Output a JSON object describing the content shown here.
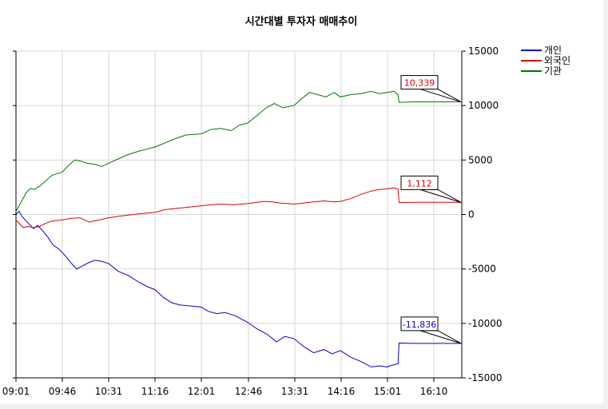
{
  "chart_data": {
    "type": "line",
    "title": "시간대별 투자자 매매추이",
    "xlabel": "",
    "ylabel": "",
    "x_ticks": [
      "09:01",
      "09:46",
      "10:31",
      "11:16",
      "12:01",
      "12:46",
      "13:31",
      "14:16",
      "15:01",
      "16:10"
    ],
    "x_range": [
      "09:01",
      "16:10"
    ],
    "ylim": [
      -15000,
      15000
    ],
    "y_ticks": [
      15000,
      10000,
      5000,
      0,
      -5000,
      -10000,
      -15000
    ],
    "grid": true,
    "legend_position": "right",
    "series": [
      {
        "name": "개인",
        "color": "#0000cc",
        "points": [
          [
            "09:01",
            0
          ],
          [
            "09:04",
            300
          ],
          [
            "09:07",
            -200
          ],
          [
            "09:10",
            -500
          ],
          [
            "09:14",
            -900
          ],
          [
            "09:18",
            -1300
          ],
          [
            "09:22",
            -1000
          ],
          [
            "09:27",
            -1500
          ],
          [
            "09:32",
            -2100
          ],
          [
            "09:37",
            -2800
          ],
          [
            "09:43",
            -3200
          ],
          [
            "09:49",
            -3800
          ],
          [
            "09:55",
            -4500
          ],
          [
            "10:00",
            -5000
          ],
          [
            "10:06",
            -4700
          ],
          [
            "10:12",
            -4400
          ],
          [
            "10:18",
            -4200
          ],
          [
            "10:24",
            -4300
          ],
          [
            "10:31",
            -4500
          ],
          [
            "10:40",
            -5200
          ],
          [
            "10:50",
            -5600
          ],
          [
            "11:00",
            -6200
          ],
          [
            "11:08",
            -6600
          ],
          [
            "11:16",
            -6900
          ],
          [
            "11:24",
            -7600
          ],
          [
            "11:32",
            -8100
          ],
          [
            "11:40",
            -8300
          ],
          [
            "11:50",
            -8400
          ],
          [
            "12:01",
            -8500
          ],
          [
            "12:08",
            -8900
          ],
          [
            "12:16",
            -9100
          ],
          [
            "12:24",
            -9000
          ],
          [
            "12:34",
            -9300
          ],
          [
            "12:46",
            -9900
          ],
          [
            "12:55",
            -10500
          ],
          [
            "13:05",
            -11000
          ],
          [
            "13:14",
            -11700
          ],
          [
            "13:22",
            -11200
          ],
          [
            "13:31",
            -11400
          ],
          [
            "13:40",
            -12100
          ],
          [
            "13:50",
            -12700
          ],
          [
            "14:00",
            -12400
          ],
          [
            "14:08",
            -12800
          ],
          [
            "14:16",
            -12500
          ],
          [
            "14:26",
            -13100
          ],
          [
            "14:36",
            -13500
          ],
          [
            "14:46",
            -14000
          ],
          [
            "14:54",
            -13900
          ],
          [
            "15:01",
            -14000
          ],
          [
            "15:08",
            -13800
          ],
          [
            "15:12",
            -13700
          ],
          [
            "15:13",
            -11800
          ],
          [
            "15:30",
            -11836
          ],
          [
            "16:00",
            -11836
          ],
          [
            "16:10",
            -11836
          ],
          [
            "16:30",
            -11836
          ]
        ],
        "last_value_label": "-11,836",
        "label_color": "#0000cc"
      },
      {
        "name": "외국인",
        "color": "#dd0000",
        "points": [
          [
            "09:01",
            -500
          ],
          [
            "09:04",
            -800
          ],
          [
            "09:08",
            -1200
          ],
          [
            "09:13",
            -1100
          ],
          [
            "09:18",
            -1200
          ],
          [
            "09:24",
            -1100
          ],
          [
            "09:30",
            -800
          ],
          [
            "09:36",
            -600
          ],
          [
            "09:46",
            -500
          ],
          [
            "09:55",
            -350
          ],
          [
            "10:03",
            -300
          ],
          [
            "10:12",
            -700
          ],
          [
            "10:22",
            -500
          ],
          [
            "10:31",
            -300
          ],
          [
            "10:42",
            -150
          ],
          [
            "10:55",
            0
          ],
          [
            "11:05",
            100
          ],
          [
            "11:16",
            200
          ],
          [
            "11:26",
            450
          ],
          [
            "11:36",
            550
          ],
          [
            "11:46",
            650
          ],
          [
            "12:01",
            800
          ],
          [
            "12:10",
            900
          ],
          [
            "12:20",
            950
          ],
          [
            "12:32",
            900
          ],
          [
            "12:46",
            1000
          ],
          [
            "12:54",
            1100
          ],
          [
            "13:02",
            1200
          ],
          [
            "13:10",
            1150
          ],
          [
            "13:18",
            1050
          ],
          [
            "13:26",
            1000
          ],
          [
            "13:31",
            950
          ],
          [
            "13:40",
            1050
          ],
          [
            "13:50",
            1150
          ],
          [
            "14:00",
            1250
          ],
          [
            "14:10",
            1150
          ],
          [
            "14:16",
            1200
          ],
          [
            "14:26",
            1450
          ],
          [
            "14:36",
            1850
          ],
          [
            "14:46",
            2150
          ],
          [
            "14:54",
            2300
          ],
          [
            "15:01",
            2350
          ],
          [
            "15:08",
            2450
          ],
          [
            "15:12",
            2350
          ],
          [
            "15:13",
            1100
          ],
          [
            "15:30",
            1112
          ],
          [
            "16:00",
            1112
          ],
          [
            "16:10",
            1112
          ],
          [
            "16:30",
            1112
          ]
        ],
        "last_value_label": "1,112",
        "label_color": "#dd0000"
      },
      {
        "name": "기관",
        "color": "#007700",
        "points": [
          [
            "09:01",
            300
          ],
          [
            "09:04",
            800
          ],
          [
            "09:07",
            1300
          ],
          [
            "09:11",
            2000
          ],
          [
            "09:15",
            2400
          ],
          [
            "09:19",
            2300
          ],
          [
            "09:24",
            2600
          ],
          [
            "09:30",
            3100
          ],
          [
            "09:36",
            3600
          ],
          [
            "09:46",
            3900
          ],
          [
            "09:52",
            4500
          ],
          [
            "09:58",
            5000
          ],
          [
            "10:04",
            4900
          ],
          [
            "10:10",
            4700
          ],
          [
            "10:18",
            4600
          ],
          [
            "10:24",
            4400
          ],
          [
            "10:31",
            4700
          ],
          [
            "10:40",
            5100
          ],
          [
            "10:50",
            5500
          ],
          [
            "11:00",
            5800
          ],
          [
            "11:08",
            6000
          ],
          [
            "11:16",
            6200
          ],
          [
            "11:24",
            6500
          ],
          [
            "11:34",
            6900
          ],
          [
            "11:46",
            7300
          ],
          [
            "12:01",
            7400
          ],
          [
            "12:10",
            7800
          ],
          [
            "12:20",
            7900
          ],
          [
            "12:30",
            7700
          ],
          [
            "12:38",
            8200
          ],
          [
            "12:46",
            8400
          ],
          [
            "12:54",
            9000
          ],
          [
            "13:04",
            9800
          ],
          [
            "13:12",
            10200
          ],
          [
            "13:20",
            9800
          ],
          [
            "13:31",
            10000
          ],
          [
            "13:38",
            10600
          ],
          [
            "13:46",
            11200
          ],
          [
            "13:54",
            11000
          ],
          [
            "14:02",
            10800
          ],
          [
            "14:10",
            11200
          ],
          [
            "14:16",
            10800
          ],
          [
            "14:26",
            11000
          ],
          [
            "14:36",
            11100
          ],
          [
            "14:46",
            11300
          ],
          [
            "14:54",
            11100
          ],
          [
            "15:01",
            11200
          ],
          [
            "15:08",
            11300
          ],
          [
            "15:12",
            11000
          ],
          [
            "15:13",
            10300
          ],
          [
            "15:30",
            10339
          ],
          [
            "16:00",
            10339
          ],
          [
            "16:10",
            10339
          ],
          [
            "16:30",
            10339
          ]
        ],
        "last_value_label": "10,339",
        "label_color": "#dd0000"
      }
    ]
  }
}
